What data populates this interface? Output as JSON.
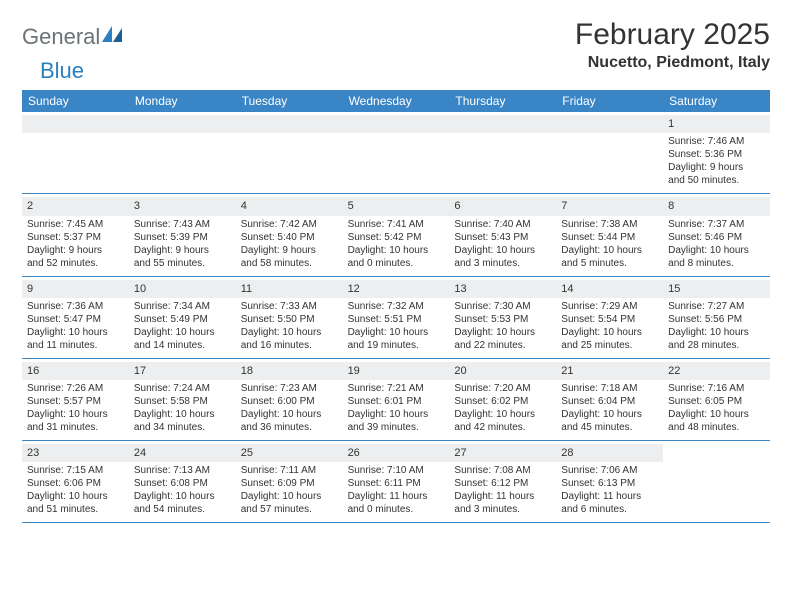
{
  "logo": {
    "part1": "General",
    "part2": "Blue"
  },
  "title": "February 2025",
  "location": "Nucetto, Piedmont, Italy",
  "colors": {
    "header_bg": "#3a85c5",
    "header_text": "#ffffff",
    "row_divider": "#3a85c5",
    "daynum_bg": "#eceeef",
    "body_text": "#333333",
    "logo_gray": "#6a7378",
    "logo_blue": "#2a7fbf",
    "background": "#ffffff"
  },
  "day_names": [
    "Sunday",
    "Monday",
    "Tuesday",
    "Wednesday",
    "Thursday",
    "Friday",
    "Saturday"
  ],
  "weeks": [
    [
      {
        "empty": true
      },
      {
        "empty": true
      },
      {
        "empty": true
      },
      {
        "empty": true
      },
      {
        "empty": true
      },
      {
        "empty": true
      },
      {
        "day": "1",
        "sunrise": "Sunrise: 7:46 AM",
        "sunset": "Sunset: 5:36 PM",
        "daylight1": "Daylight: 9 hours",
        "daylight2": "and 50 minutes."
      }
    ],
    [
      {
        "day": "2",
        "sunrise": "Sunrise: 7:45 AM",
        "sunset": "Sunset: 5:37 PM",
        "daylight1": "Daylight: 9 hours",
        "daylight2": "and 52 minutes."
      },
      {
        "day": "3",
        "sunrise": "Sunrise: 7:43 AM",
        "sunset": "Sunset: 5:39 PM",
        "daylight1": "Daylight: 9 hours",
        "daylight2": "and 55 minutes."
      },
      {
        "day": "4",
        "sunrise": "Sunrise: 7:42 AM",
        "sunset": "Sunset: 5:40 PM",
        "daylight1": "Daylight: 9 hours",
        "daylight2": "and 58 minutes."
      },
      {
        "day": "5",
        "sunrise": "Sunrise: 7:41 AM",
        "sunset": "Sunset: 5:42 PM",
        "daylight1": "Daylight: 10 hours",
        "daylight2": "and 0 minutes."
      },
      {
        "day": "6",
        "sunrise": "Sunrise: 7:40 AM",
        "sunset": "Sunset: 5:43 PM",
        "daylight1": "Daylight: 10 hours",
        "daylight2": "and 3 minutes."
      },
      {
        "day": "7",
        "sunrise": "Sunrise: 7:38 AM",
        "sunset": "Sunset: 5:44 PM",
        "daylight1": "Daylight: 10 hours",
        "daylight2": "and 5 minutes."
      },
      {
        "day": "8",
        "sunrise": "Sunrise: 7:37 AM",
        "sunset": "Sunset: 5:46 PM",
        "daylight1": "Daylight: 10 hours",
        "daylight2": "and 8 minutes."
      }
    ],
    [
      {
        "day": "9",
        "sunrise": "Sunrise: 7:36 AM",
        "sunset": "Sunset: 5:47 PM",
        "daylight1": "Daylight: 10 hours",
        "daylight2": "and 11 minutes."
      },
      {
        "day": "10",
        "sunrise": "Sunrise: 7:34 AM",
        "sunset": "Sunset: 5:49 PM",
        "daylight1": "Daylight: 10 hours",
        "daylight2": "and 14 minutes."
      },
      {
        "day": "11",
        "sunrise": "Sunrise: 7:33 AM",
        "sunset": "Sunset: 5:50 PM",
        "daylight1": "Daylight: 10 hours",
        "daylight2": "and 16 minutes."
      },
      {
        "day": "12",
        "sunrise": "Sunrise: 7:32 AM",
        "sunset": "Sunset: 5:51 PM",
        "daylight1": "Daylight: 10 hours",
        "daylight2": "and 19 minutes."
      },
      {
        "day": "13",
        "sunrise": "Sunrise: 7:30 AM",
        "sunset": "Sunset: 5:53 PM",
        "daylight1": "Daylight: 10 hours",
        "daylight2": "and 22 minutes."
      },
      {
        "day": "14",
        "sunrise": "Sunrise: 7:29 AM",
        "sunset": "Sunset: 5:54 PM",
        "daylight1": "Daylight: 10 hours",
        "daylight2": "and 25 minutes."
      },
      {
        "day": "15",
        "sunrise": "Sunrise: 7:27 AM",
        "sunset": "Sunset: 5:56 PM",
        "daylight1": "Daylight: 10 hours",
        "daylight2": "and 28 minutes."
      }
    ],
    [
      {
        "day": "16",
        "sunrise": "Sunrise: 7:26 AM",
        "sunset": "Sunset: 5:57 PM",
        "daylight1": "Daylight: 10 hours",
        "daylight2": "and 31 minutes."
      },
      {
        "day": "17",
        "sunrise": "Sunrise: 7:24 AM",
        "sunset": "Sunset: 5:58 PM",
        "daylight1": "Daylight: 10 hours",
        "daylight2": "and 34 minutes."
      },
      {
        "day": "18",
        "sunrise": "Sunrise: 7:23 AM",
        "sunset": "Sunset: 6:00 PM",
        "daylight1": "Daylight: 10 hours",
        "daylight2": "and 36 minutes."
      },
      {
        "day": "19",
        "sunrise": "Sunrise: 7:21 AM",
        "sunset": "Sunset: 6:01 PM",
        "daylight1": "Daylight: 10 hours",
        "daylight2": "and 39 minutes."
      },
      {
        "day": "20",
        "sunrise": "Sunrise: 7:20 AM",
        "sunset": "Sunset: 6:02 PM",
        "daylight1": "Daylight: 10 hours",
        "daylight2": "and 42 minutes."
      },
      {
        "day": "21",
        "sunrise": "Sunrise: 7:18 AM",
        "sunset": "Sunset: 6:04 PM",
        "daylight1": "Daylight: 10 hours",
        "daylight2": "and 45 minutes."
      },
      {
        "day": "22",
        "sunrise": "Sunrise: 7:16 AM",
        "sunset": "Sunset: 6:05 PM",
        "daylight1": "Daylight: 10 hours",
        "daylight2": "and 48 minutes."
      }
    ],
    [
      {
        "day": "23",
        "sunrise": "Sunrise: 7:15 AM",
        "sunset": "Sunset: 6:06 PM",
        "daylight1": "Daylight: 10 hours",
        "daylight2": "and 51 minutes."
      },
      {
        "day": "24",
        "sunrise": "Sunrise: 7:13 AM",
        "sunset": "Sunset: 6:08 PM",
        "daylight1": "Daylight: 10 hours",
        "daylight2": "and 54 minutes."
      },
      {
        "day": "25",
        "sunrise": "Sunrise: 7:11 AM",
        "sunset": "Sunset: 6:09 PM",
        "daylight1": "Daylight: 10 hours",
        "daylight2": "and 57 minutes."
      },
      {
        "day": "26",
        "sunrise": "Sunrise: 7:10 AM",
        "sunset": "Sunset: 6:11 PM",
        "daylight1": "Daylight: 11 hours",
        "daylight2": "and 0 minutes."
      },
      {
        "day": "27",
        "sunrise": "Sunrise: 7:08 AM",
        "sunset": "Sunset: 6:12 PM",
        "daylight1": "Daylight: 11 hours",
        "daylight2": "and 3 minutes."
      },
      {
        "day": "28",
        "sunrise": "Sunrise: 7:06 AM",
        "sunset": "Sunset: 6:13 PM",
        "daylight1": "Daylight: 11 hours",
        "daylight2": "and 6 minutes."
      },
      {
        "empty": true,
        "noBg": true
      }
    ]
  ]
}
